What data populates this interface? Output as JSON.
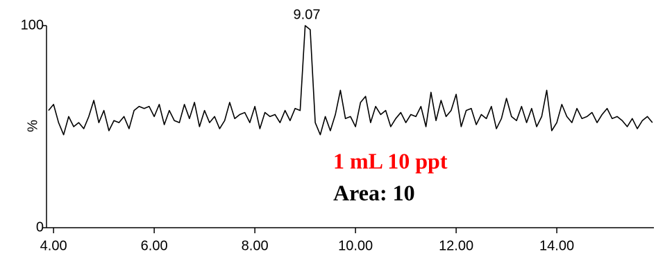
{
  "chart_data": {
    "type": "line",
    "ylabel": "%",
    "xlim": [
      3.86,
      15.93
    ],
    "ylim": [
      0,
      100
    ],
    "xticks": [
      {
        "value": 4,
        "label": "4.00"
      },
      {
        "value": 6,
        "label": "6.00"
      },
      {
        "value": 8,
        "label": "8.00"
      },
      {
        "value": 10,
        "label": "10.00"
      },
      {
        "value": 12,
        "label": "12.00"
      },
      {
        "value": 14,
        "label": "14.00"
      }
    ],
    "yticks": [
      0,
      100
    ],
    "peak_label": "9.07",
    "annotations": [
      {
        "text": "1 mL 10 ppt",
        "color": "#ff0000"
      },
      {
        "text": "Area: 10",
        "color": "#000000"
      }
    ],
    "x": [
      3.9,
      4.0,
      4.1,
      4.2,
      4.3,
      4.4,
      4.5,
      4.6,
      4.7,
      4.8,
      4.9,
      5.0,
      5.1,
      5.2,
      5.3,
      5.4,
      5.5,
      5.6,
      5.7,
      5.8,
      5.9,
      6.0,
      6.1,
      6.2,
      6.3,
      6.4,
      6.5,
      6.6,
      6.7,
      6.8,
      6.9,
      7.0,
      7.1,
      7.2,
      7.3,
      7.4,
      7.5,
      7.6,
      7.7,
      7.8,
      7.9,
      8.0,
      8.1,
      8.2,
      8.3,
      8.4,
      8.5,
      8.6,
      8.7,
      8.8,
      8.9,
      9.0,
      9.1,
      9.2,
      9.3,
      9.4,
      9.5,
      9.6,
      9.7,
      9.8,
      9.9,
      10.0,
      10.1,
      10.2,
      10.3,
      10.4,
      10.5,
      10.6,
      10.7,
      10.8,
      10.9,
      11.0,
      11.1,
      11.2,
      11.3,
      11.4,
      11.5,
      11.6,
      11.7,
      11.8,
      11.9,
      12.0,
      12.1,
      12.2,
      12.3,
      12.4,
      12.5,
      12.6,
      12.7,
      12.8,
      12.9,
      13.0,
      13.1,
      13.2,
      13.3,
      13.4,
      13.5,
      13.6,
      13.7,
      13.8,
      13.9,
      14.0,
      14.1,
      14.2,
      14.3,
      14.4,
      14.5,
      14.6,
      14.7,
      14.8,
      14.9,
      15.0,
      15.1,
      15.2,
      15.3,
      15.4,
      15.5,
      15.6,
      15.7,
      15.8,
      15.9
    ],
    "series": [
      {
        "color": "#000000",
        "values": [
          58,
          61,
          52,
          46,
          55,
          50,
          52,
          49,
          55,
          63,
          52,
          58,
          48,
          53,
          52,
          55,
          49,
          58,
          60,
          59,
          60,
          55,
          61,
          51,
          58,
          53,
          52,
          61,
          54,
          62,
          50,
          58,
          52,
          55,
          49,
          53,
          62,
          54,
          56,
          57,
          52,
          60,
          49,
          57,
          55,
          56,
          52,
          58,
          53,
          59,
          58,
          100,
          98,
          52,
          46,
          55,
          48,
          56,
          68,
          54,
          55,
          50,
          62,
          65,
          52,
          60,
          56,
          58,
          50,
          54,
          57,
          52,
          56,
          55,
          60,
          50,
          67,
          53,
          63,
          55,
          58,
          66,
          50,
          58,
          59,
          51,
          56,
          54,
          60,
          49,
          54,
          64,
          55,
          53,
          60,
          52,
          59,
          50,
          55,
          68,
          48,
          52,
          61,
          55,
          52,
          59,
          54,
          55,
          57,
          52,
          56,
          59,
          54,
          55,
          53,
          50,
          54,
          49,
          53,
          55,
          52
        ]
      }
    ]
  }
}
